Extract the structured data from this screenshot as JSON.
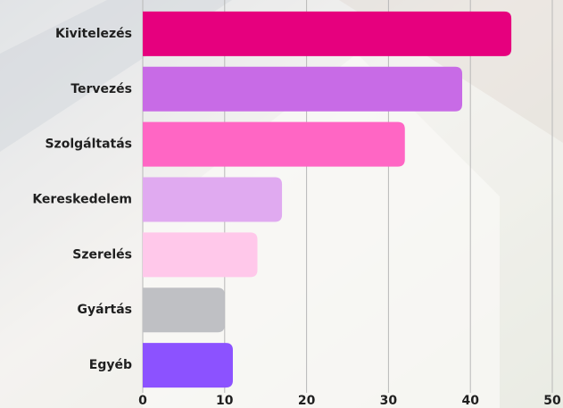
{
  "chart_data": {
    "type": "bar",
    "orientation": "horizontal",
    "categories": [
      "Kivitelezés",
      "Tervezés",
      "Szolgáltatás",
      "Kereskedelem",
      "Szerelés",
      "Gyártás",
      "Egyéb"
    ],
    "values": [
      45,
      39,
      32,
      17,
      14,
      10,
      11
    ],
    "colors": [
      "#e6007e",
      "#c86be6",
      "#ff66c4",
      "#e0aaf0",
      "#ffc8ea",
      "#bfc0c4",
      "#8c52ff"
    ],
    "xlim": [
      0,
      50
    ],
    "xticks": [
      0,
      10,
      20,
      30,
      40,
      50
    ],
    "grid": true
  }
}
